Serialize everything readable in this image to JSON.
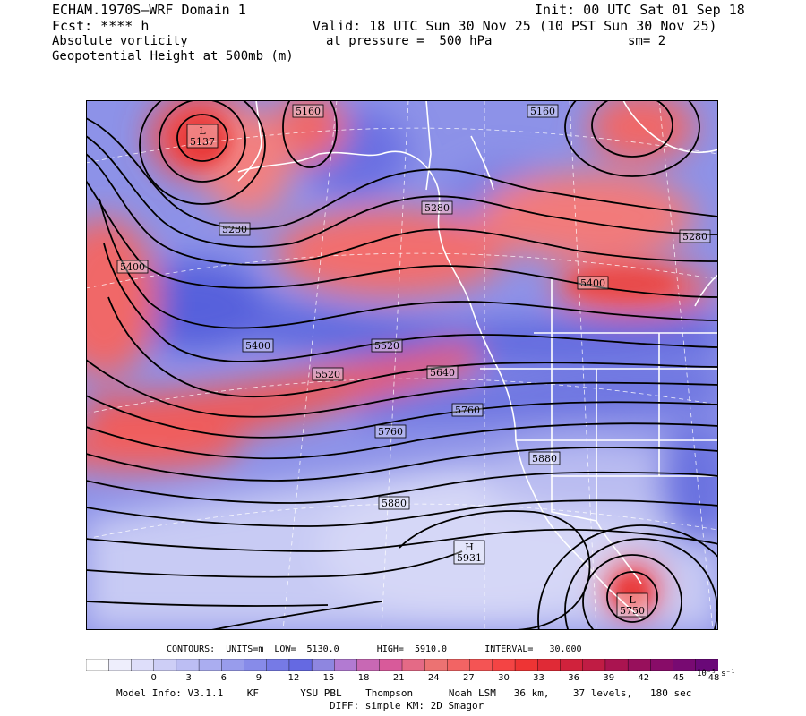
{
  "header": {
    "model": "ECHAM.1970S–WRF Domain 1",
    "init": "Init: 00 UTC Sat 01 Sep 18",
    "fcst": "Fcst: **** h",
    "valid": "Valid: 18 UTC Sun 30 Nov 25 (10 PST Sun 30 Nov 25)",
    "field1": "Absolute vorticity",
    "pressure": "at pressure =  500 hPa",
    "sm": "sm= 2",
    "field2": "Geopotential Height at 500mb (m)"
  },
  "map": {
    "contour_labels": [
      "5160",
      "5160",
      "5280",
      "5280",
      "5280",
      "5400",
      "5400",
      "5400",
      "5520",
      "5520",
      "5640",
      "5760",
      "5760",
      "5880",
      "5880"
    ],
    "lows": [
      {
        "symbol": "L",
        "value": "5137"
      },
      {
        "symbol": "L",
        "value": "5750"
      }
    ],
    "highs": [
      {
        "symbol": "H",
        "value": "5931"
      }
    ],
    "colors": {
      "blue_deep": "#4b5bd8",
      "blue_mid": "#8a90ea",
      "blue_pale": "#c9cbf4",
      "red_mid": "#f26a6a",
      "red_deep": "#e8343a",
      "pink": "#f2a0a8",
      "contour": "#000000",
      "boundary": "#ffffff"
    }
  },
  "contour_info": {
    "text": "CONTOURS:  UNITS=m  LOW=  5130.0       HIGH=  5910.0       INTERVAL=   30.000"
  },
  "colorbar": {
    "ticks": [
      "0",
      "3",
      "6",
      "9",
      "12",
      "15",
      "18",
      "21",
      "24",
      "27",
      "30",
      "33",
      "36",
      "39",
      "42",
      "45",
      "48"
    ],
    "units": "10⁻⁵ s⁻¹",
    "colors": [
      "#ffffff",
      "#eeeefc",
      "#dedefa",
      "#cdcef6",
      "#bcbef3",
      "#aaadf0",
      "#989cec",
      "#878be9",
      "#767ae6",
      "#6569e2",
      "#8e86e0",
      "#b27ad2",
      "#c868b4",
      "#d85a9a",
      "#e46a86",
      "#ec7272",
      "#f26464",
      "#f45454",
      "#f44444",
      "#ee3434",
      "#e02a36",
      "#d0223c",
      "#c01c44",
      "#aa1450",
      "#98105c",
      "#880c68",
      "#780a72",
      "#6a0878"
    ]
  },
  "model_info": {
    "line1": "Model Info: V3.1.1    KF       YSU PBL    Thompson      Noah LSM   36 km,    37 levels,   180 sec",
    "line2": "DIFF: simple KM: 2D Smagor"
  }
}
